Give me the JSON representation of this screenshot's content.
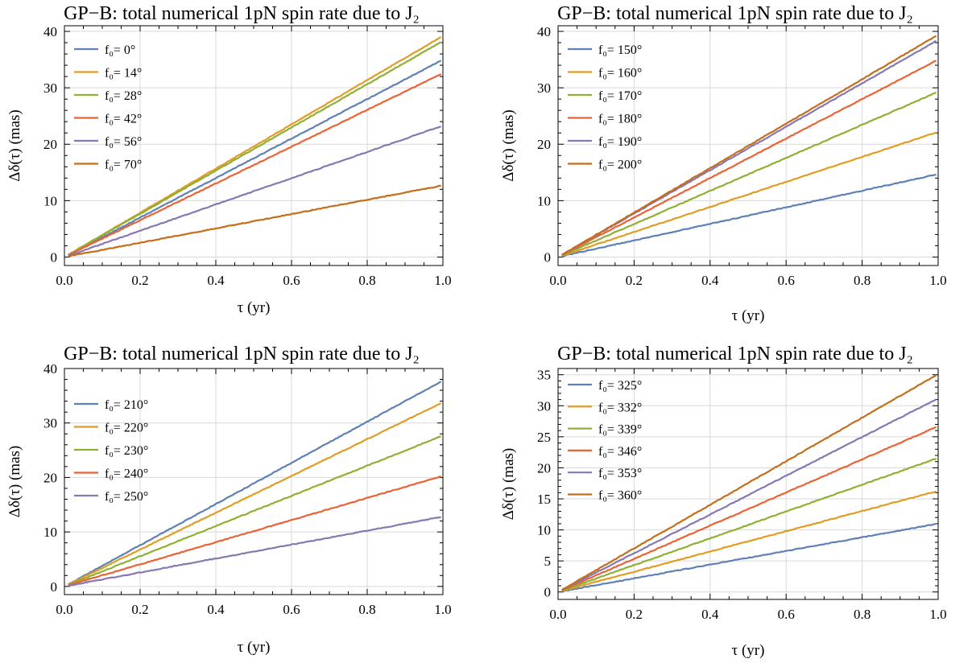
{
  "chart_data": [
    {
      "type": "line",
      "title": "GP−B: total numerical 1pN spin rate due to J₂",
      "xlabel": "τ  (yr)",
      "ylabel": "Δδ(τ)  (mas)",
      "xlim": [
        0.0,
        1.0
      ],
      "ylim": [
        -1.5,
        41
      ],
      "xticks": [
        "0.0",
        "0.2",
        "0.4",
        "0.6",
        "0.8",
        "1.0"
      ],
      "yticks": [
        "0",
        "10",
        "20",
        "30",
        "40"
      ],
      "grid": true,
      "legend_position": "top-left",
      "x": [
        0.0,
        1.0
      ],
      "series": [
        {
          "name": "f₀= 0°",
          "color": "#5E81B5",
          "values": [
            0,
            35.0
          ]
        },
        {
          "name": "f₀= 14°",
          "color": "#E19C24",
          "values": [
            0,
            39.2
          ]
        },
        {
          "name": "f₀= 28°",
          "color": "#8FB032",
          "values": [
            0,
            38.3
          ]
        },
        {
          "name": "f₀= 42°",
          "color": "#EB6235",
          "values": [
            0,
            32.6
          ]
        },
        {
          "name": "f₀= 56°",
          "color": "#8778B3",
          "values": [
            0,
            23.3
          ]
        },
        {
          "name": "f₀= 70°",
          "color": "#C56E1A",
          "values": [
            0,
            12.7
          ]
        }
      ]
    },
    {
      "type": "line",
      "title": "GP−B: total numerical 1pN spin rate due to J₂",
      "xlabel": "τ  (yr)",
      "ylabel": "Δδ(τ)  (mas)",
      "xlim": [
        0.0,
        1.0
      ],
      "ylim": [
        -1.5,
        41
      ],
      "xticks": [
        "0.0",
        "0.2",
        "0.4",
        "0.6",
        "0.8",
        "1.0"
      ],
      "yticks": [
        "0",
        "10",
        "20",
        "30",
        "40"
      ],
      "grid": true,
      "legend_position": "top-left",
      "x": [
        0.0,
        1.0
      ],
      "series": [
        {
          "name": "f₀= 150°",
          "color": "#5E81B5",
          "values": [
            0,
            14.7
          ]
        },
        {
          "name": "f₀= 160°",
          "color": "#E19C24",
          "values": [
            0,
            22.2
          ]
        },
        {
          "name": "f₀= 170°",
          "color": "#8FB032",
          "values": [
            0,
            29.3
          ]
        },
        {
          "name": "f₀= 180°",
          "color": "#EB6235",
          "values": [
            0,
            35.0
          ]
        },
        {
          "name": "f₀= 190°",
          "color": "#8778B3",
          "values": [
            0,
            38.5
          ]
        },
        {
          "name": "f₀= 200°",
          "color": "#C56E1A",
          "values": [
            0,
            39.4
          ]
        }
      ]
    },
    {
      "type": "line",
      "title": "GP−B: total numerical 1pN spin rate due to J₂",
      "xlabel": "τ  (yr)",
      "ylabel": "Δδ(τ)  (mas)",
      "xlim": [
        0.0,
        1.0
      ],
      "ylim": [
        -1.5,
        40
      ],
      "xticks": [
        "0.0",
        "0.2",
        "0.4",
        "0.6",
        "0.8",
        "1.0"
      ],
      "yticks": [
        "0",
        "10",
        "20",
        "30",
        "40"
      ],
      "grid": true,
      "legend_position": "top-left",
      "x": [
        0.0,
        1.0
      ],
      "series": [
        {
          "name": "f₀= 210°",
          "color": "#5E81B5",
          "values": [
            0,
            37.8
          ]
        },
        {
          "name": "f₀= 220°",
          "color": "#E19C24",
          "values": [
            0,
            33.8
          ]
        },
        {
          "name": "f₀= 230°",
          "color": "#8FB032",
          "values": [
            0,
            27.7
          ]
        },
        {
          "name": "f₀= 240°",
          "color": "#EB6235",
          "values": [
            0,
            20.3
          ]
        },
        {
          "name": "f₀= 250°",
          "color": "#8778B3",
          "values": [
            0,
            12.8
          ]
        }
      ]
    },
    {
      "type": "line",
      "title": "GP−B: total numerical 1pN spin rate due to J₂",
      "xlabel": "τ  (yr)",
      "ylabel": "Δδ(τ)  (mas)",
      "xlim": [
        0.0,
        1.0
      ],
      "ylim": [
        -1.2,
        36
      ],
      "xticks": [
        "0.0",
        "0.2",
        "0.4",
        "0.6",
        "0.8",
        "1.0"
      ],
      "yticks": [
        "0",
        "5",
        "10",
        "15",
        "20",
        "25",
        "30",
        "35"
      ],
      "grid": true,
      "legend_position": "top-left",
      "x": [
        0.0,
        1.0
      ],
      "series": [
        {
          "name": "f₀= 325°",
          "color": "#5E81B5",
          "values": [
            0,
            11.0
          ]
        },
        {
          "name": "f₀= 332°",
          "color": "#E19C24",
          "values": [
            0,
            16.3
          ]
        },
        {
          "name": "f₀= 339°",
          "color": "#8FB032",
          "values": [
            0,
            21.6
          ]
        },
        {
          "name": "f₀= 346°",
          "color": "#EB6235",
          "values": [
            0,
            26.7
          ]
        },
        {
          "name": "f₀= 353°",
          "color": "#8778B3",
          "values": [
            0,
            31.2
          ]
        },
        {
          "name": "f₀= 360°",
          "color": "#C56E1A",
          "values": [
            0,
            35.1
          ]
        }
      ]
    }
  ]
}
